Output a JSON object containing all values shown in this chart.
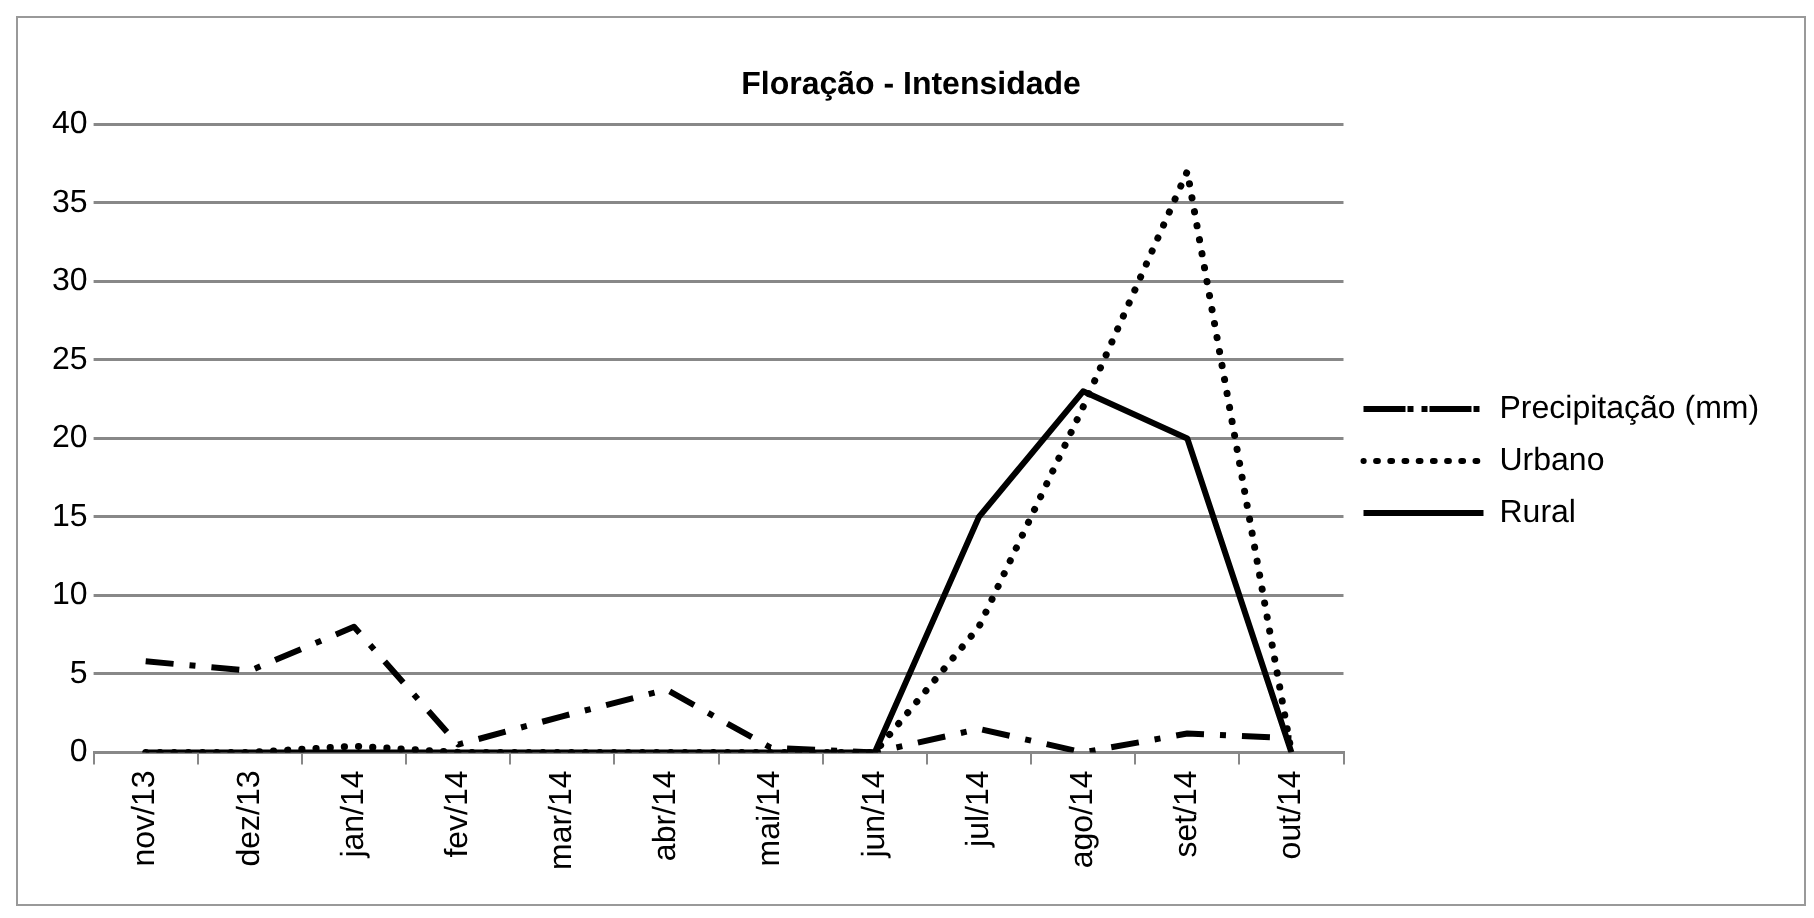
{
  "chart_data": {
    "type": "line",
    "title": "Floração - Intensidade",
    "categories": [
      "nov/13",
      "dez/13",
      "jan/14",
      "fev/14",
      "mar/14",
      "abr/14",
      "mai/14",
      "jun/14",
      "jul/14",
      "ago/14",
      "set/14",
      "out/14"
    ],
    "series": [
      {
        "name": "Precipitação (mm)",
        "color": "#000000",
        "line_style": "dashdot",
        "values": [
          5.8,
          5.2,
          8,
          0.5,
          2.3,
          4,
          0.3,
          0,
          1.5,
          0,
          1.2,
          0.9
        ]
      },
      {
        "name": "Urbano",
        "color": "#000000",
        "line_style": "dotted",
        "values": [
          0,
          0,
          0.4,
          0,
          0,
          0,
          0,
          0,
          8,
          22,
          37,
          0
        ]
      },
      {
        "name": "Rural",
        "color": "#000000",
        "line_style": "solid",
        "values": [
          0,
          0,
          0,
          0,
          0,
          0,
          0,
          0,
          15,
          23,
          20,
          0
        ]
      }
    ],
    "ylim": [
      0,
      40
    ],
    "yticks": [
      0,
      5,
      10,
      15,
      20,
      25,
      30,
      35,
      40
    ],
    "grid": "y",
    "legend": "right",
    "marker": "none"
  }
}
